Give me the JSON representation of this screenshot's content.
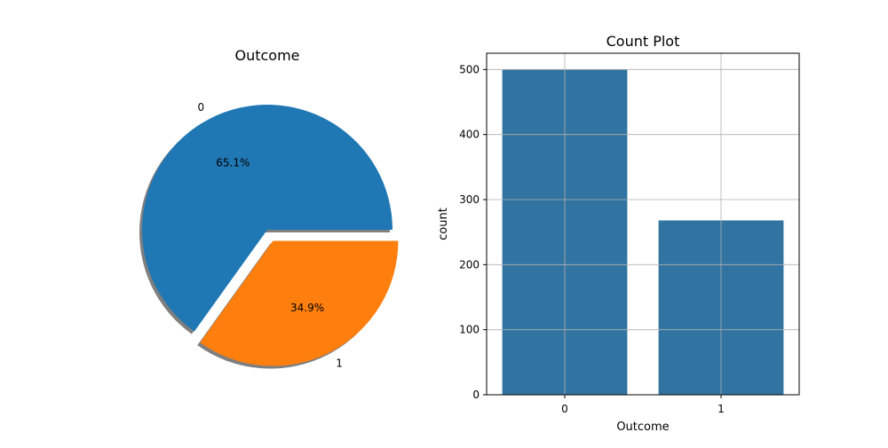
{
  "chart_data": [
    {
      "type": "pie",
      "title": "Outcome",
      "labels": [
        "0",
        "1"
      ],
      "values": [
        65.1,
        34.9
      ],
      "autopct": [
        "65.1%",
        "34.9%"
      ],
      "explode": [
        0,
        0.1
      ],
      "shadow": true,
      "colors": [
        "#1f77b4",
        "#ff7f0e"
      ]
    },
    {
      "type": "bar",
      "title": "Count Plot",
      "categories": [
        "0",
        "1"
      ],
      "values": [
        500,
        268
      ],
      "xlabel": "Outcome",
      "ylabel": "count",
      "ylim": [
        0,
        525
      ],
      "yticks": [
        "0",
        "100",
        "200",
        "300",
        "400",
        "500"
      ],
      "grid": true,
      "color": "#3274a1"
    }
  ]
}
